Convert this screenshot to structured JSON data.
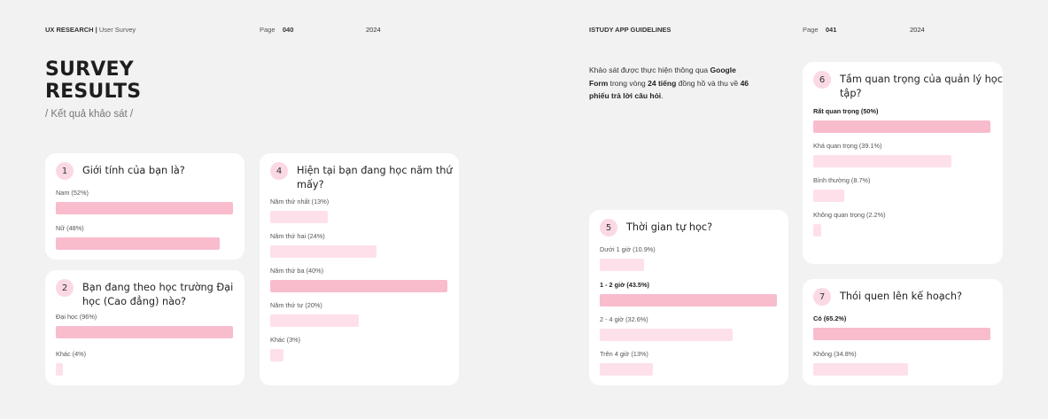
{
  "header_left": {
    "section": "UX RESEARCH",
    "sep": " | ",
    "sub": "User Survey",
    "page_label": "Page",
    "page_num": "040",
    "year": "2024"
  },
  "header_right": {
    "section": "ISTUDY APP GUIDELINES",
    "page_label": "Page",
    "page_num": "041",
    "year": "2024"
  },
  "title_line1": "SURVEY",
  "title_line2": "RESULTS",
  "subtitle": "/ Kết quả khảo sát /",
  "intro": {
    "t1": "Khảo sát được thực hiện thông qua ",
    "b1": "Google Form",
    "t2": " trong vòng ",
    "b2": "24 tiếng",
    "t3": " đồng hồ và thu về ",
    "b3": "46 phiếu trả lời câu hỏi",
    "t4": "."
  },
  "colors": {
    "bar_highlight": "#f8bccd",
    "bar_light": "#fde0ea",
    "number_badge": "#fbd9e4"
  },
  "questions": [
    {
      "num": "1",
      "text": "Giới tính của bạn là?",
      "options": [
        {
          "label": "Nam (52%)",
          "value": 52
        },
        {
          "label": "Nữ (48%)",
          "value": 48
        }
      ]
    },
    {
      "num": "2",
      "text": "Bạn đang theo học trường Đại học (Cao đẳng) nào?",
      "options": [
        {
          "label": "Đại học (96%)",
          "value": 96
        },
        {
          "label": "Khác (4%)",
          "value": 4
        }
      ]
    },
    {
      "num": "4",
      "text": "Hiện tại bạn đang học năm thứ mấy?",
      "options": [
        {
          "label": "Năm thứ nhất (13%)",
          "value": 13
        },
        {
          "label": "Năm thứ hai (24%)",
          "value": 24
        },
        {
          "label": "Năm thứ ba (40%)",
          "value": 40
        },
        {
          "label": "Năm thứ tư (20%)",
          "value": 20
        },
        {
          "label": "Khác (3%)",
          "value": 3
        }
      ]
    },
    {
      "num": "5",
      "text": "Thời gian tự học?",
      "options": [
        {
          "label": "Dưới 1 giờ (10.9%)",
          "value": 10.9
        },
        {
          "label": "1 - 2 giờ (43.5%)",
          "value": 43.5
        },
        {
          "label": "2 - 4 giờ (32.6%)",
          "value": 32.6
        },
        {
          "label": "Trên 4 giờ (13%)",
          "value": 13
        }
      ]
    },
    {
      "num": "6",
      "text": "Tầm quan trọng của quản lý học tập?",
      "options": [
        {
          "label": "Rất quan trọng (50%)",
          "value": 50
        },
        {
          "label": "Khá quan trọng (39.1%)",
          "value": 39.1
        },
        {
          "label": "Bình thường (8.7%)",
          "value": 8.7
        },
        {
          "label": "Không quan trọng (2.2%)",
          "value": 2.2
        }
      ]
    },
    {
      "num": "7",
      "text": "Thói quen lên kế hoạch?",
      "options": [
        {
          "label": "Có (65.2%)",
          "value": 65.2
        },
        {
          "label": "Không (34.8%)",
          "value": 34.8
        }
      ]
    }
  ]
}
